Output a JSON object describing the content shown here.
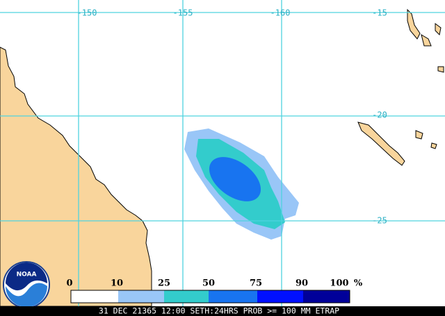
{
  "map": {
    "longitude_labels": [
      "-150",
      "-155",
      "-160"
    ],
    "latitude_labels": [
      "-15",
      "-20",
      "-25"
    ],
    "legend": {
      "labels": [
        "0",
        "10",
        "25",
        "50",
        "75",
        "90",
        "100"
      ],
      "unit": "%",
      "colors": [
        "#ffffff",
        "#99c6f7",
        "#33cccc",
        "#1874f0",
        "#0010ff",
        "#000099"
      ]
    },
    "footer": "31 DEC 21365 12:00 SETH:24HRS PROB >= 100 MM ETRAP",
    "logo": "NOAA"
  }
}
